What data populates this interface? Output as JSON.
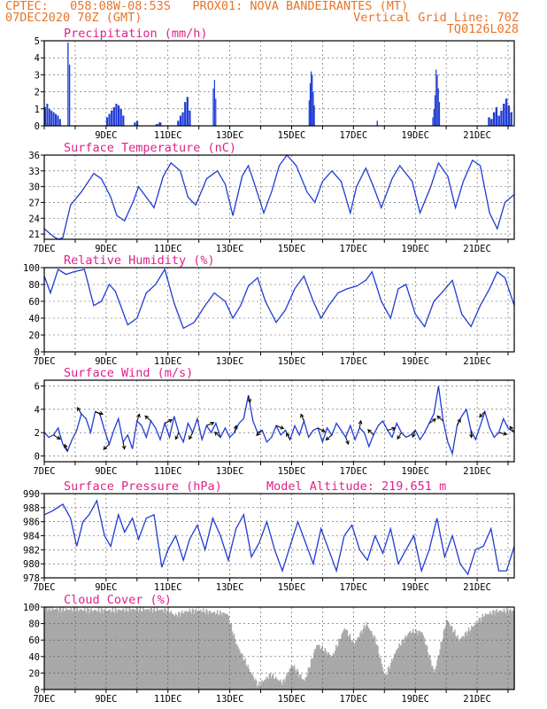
{
  "header": {
    "line1": "CPTEC:   058:08W-08:53S   PROX01: NOVA BANDEIRANTES (MT)",
    "line2_left": "07DEC2020 70Z (GMT)",
    "line2_right": "Vertical Grid Line: 70Z",
    "line3_right": "TQ0126L028"
  },
  "colors": {
    "header": "#e8742a",
    "title": "#e0218a",
    "series": "#1f3bd6",
    "cloud": "#a9a9a9",
    "wind_arrow": "#000000"
  },
  "x_axis": {
    "dates": [
      "7DEC",
      "9DEC",
      "11DEC",
      "13DEC",
      "15DEC",
      "17DEC",
      "19DEC",
      "21DEC"
    ],
    "dates_precip": [
      "9DEC",
      "11DEC",
      "13DEC",
      "15DEC",
      "17DEC",
      "19DEC",
      "21DEC"
    ],
    "start_day": 7,
    "end_day": 22.2
  },
  "panels": [
    {
      "id": "precip",
      "title": "Precipitation  (mm/h)",
      "ylim": [
        0,
        5
      ],
      "yticks": [
        0,
        1,
        2,
        3,
        4,
        5
      ]
    },
    {
      "id": "temp",
      "title": "Surface Temperature  (nC)",
      "ylim": [
        20,
        36
      ],
      "yticks": [
        21,
        24,
        27,
        30,
        33,
        36
      ]
    },
    {
      "id": "rh",
      "title": "Relative Humidity  (%)",
      "ylim": [
        0,
        100
      ],
      "yticks": [
        0,
        20,
        40,
        60,
        80,
        100
      ]
    },
    {
      "id": "wind",
      "title": "Surface Wind  (m/s)",
      "ylim": [
        -0.5,
        6.5
      ],
      "yticks": [
        0,
        2,
        4,
        6
      ]
    },
    {
      "id": "pres",
      "title": "Surface Pressure  (hPa)",
      "subtitle": "Model Altitude: 219.651  m",
      "ylim": [
        978,
        990
      ],
      "yticks": [
        978,
        980,
        982,
        984,
        986,
        988,
        990
      ]
    },
    {
      "id": "cloud",
      "title": "Cloud Cover  (%)",
      "ylim": [
        0,
        100
      ],
      "yticks": [
        0,
        20,
        40,
        60,
        80,
        100
      ]
    }
  ],
  "chart_data": [
    {
      "type": "bar",
      "title": "Precipitation  (mm/h)",
      "ylim": [
        0,
        5
      ],
      "events": [
        {
          "day": 7.0,
          "width": 0.55,
          "values": [
            1.1,
            1.3,
            1.0,
            0.9,
            0.8,
            0.7,
            0.6,
            0.4
          ]
        },
        {
          "day": 7.75,
          "width": 0.1,
          "values": [
            4.9,
            3.6
          ]
        },
        {
          "day": 9.0,
          "width": 0.6,
          "values": [
            0.5,
            0.7,
            0.9,
            1.1,
            1.3,
            1.2,
            1.0,
            0.6
          ]
        },
        {
          "day": 9.9,
          "width": 0.15,
          "values": [
            0.2,
            0.3
          ]
        },
        {
          "day": 10.6,
          "width": 0.2,
          "values": [
            0.1,
            0.2
          ]
        },
        {
          "day": 11.3,
          "width": 0.45,
          "values": [
            0.3,
            0.6,
            0.8,
            1.4,
            1.7,
            0.9
          ]
        },
        {
          "day": 12.45,
          "width": 0.12,
          "values": [
            2.2,
            2.7,
            1.6
          ]
        },
        {
          "day": 15.55,
          "width": 0.2,
          "values": [
            1.5,
            2.5,
            3.2,
            3.0,
            2.0,
            1.2
          ]
        },
        {
          "day": 17.75,
          "width": 0.05,
          "values": [
            0.3
          ]
        },
        {
          "day": 19.55,
          "width": 0.25,
          "values": [
            0.5,
            1.0,
            1.8,
            3.3,
            3.0,
            2.2,
            1.4
          ]
        },
        {
          "day": 21.35,
          "width": 0.8,
          "values": [
            0.5,
            0.4,
            0.8,
            1.1,
            0.6,
            0.9,
            1.3,
            1.6,
            1.2,
            0.8
          ]
        }
      ]
    },
    {
      "type": "line",
      "title": "Surface Temperature  (nC)",
      "ylim": [
        20,
        36
      ],
      "x": [
        7.0,
        7.3,
        7.45,
        7.6,
        7.85,
        8.2,
        8.6,
        8.85,
        9.15,
        9.35,
        9.6,
        9.9,
        10.05,
        10.3,
        10.55,
        10.85,
        11.1,
        11.4,
        11.65,
        11.9,
        12.25,
        12.6,
        12.85,
        13.1,
        13.4,
        13.6,
        13.8,
        14.1,
        14.35,
        14.6,
        14.85,
        15.15,
        15.5,
        15.75,
        16.0,
        16.3,
        16.6,
        16.9,
        17.1,
        17.4,
        17.65,
        17.9,
        18.25,
        18.5,
        18.9,
        19.15,
        19.5,
        19.75,
        20.05,
        20.3,
        20.55,
        20.85,
        21.1,
        21.4,
        21.65,
        21.9,
        22.2
      ],
      "y": [
        22,
        20.5,
        20,
        20.3,
        26.5,
        29,
        32.5,
        31.5,
        28,
        24.5,
        23.5,
        27.5,
        30,
        28,
        26,
        32,
        34.5,
        33,
        28,
        26.5,
        31.5,
        33,
        30.5,
        24.5,
        32,
        34,
        30.5,
        25,
        29,
        34,
        36,
        34,
        29,
        27,
        31,
        33,
        31,
        25,
        30,
        33.5,
        30,
        26,
        31.5,
        34,
        31,
        25,
        30,
        34.5,
        32,
        26,
        31,
        35,
        34,
        25,
        22,
        27,
        28.5
      ]
    },
    {
      "type": "line",
      "title": "Relative Humidity  (%)",
      "ylim": [
        0,
        100
      ],
      "x": [
        7.0,
        7.2,
        7.45,
        7.7,
        7.95,
        8.3,
        8.6,
        8.85,
        9.1,
        9.3,
        9.7,
        10.0,
        10.3,
        10.6,
        10.9,
        11.2,
        11.5,
        11.85,
        12.2,
        12.5,
        12.85,
        13.1,
        13.35,
        13.6,
        13.9,
        14.15,
        14.5,
        14.8,
        15.1,
        15.4,
        15.7,
        15.95,
        16.2,
        16.5,
        16.8,
        17.1,
        17.4,
        17.6,
        17.9,
        18.2,
        18.45,
        18.7,
        19.0,
        19.3,
        19.6,
        19.9,
        20.2,
        20.5,
        20.8,
        21.1,
        21.4,
        21.65,
        21.9,
        22.2
      ],
      "y": [
        90,
        70,
        98,
        92,
        95,
        98,
        55,
        60,
        80,
        72,
        32,
        40,
        70,
        80,
        98,
        58,
        28,
        35,
        55,
        70,
        60,
        40,
        55,
        78,
        88,
        60,
        35,
        50,
        75,
        90,
        60,
        40,
        55,
        70,
        75,
        78,
        85,
        95,
        60,
        40,
        75,
        80,
        45,
        30,
        60,
        72,
        85,
        45,
        30,
        55,
        75,
        95,
        88,
        55
      ]
    },
    {
      "type": "line",
      "title": "Surface Wind  (m/s)",
      "ylim": [
        -0.5,
        6.5
      ],
      "x": [
        7.0,
        7.15,
        7.3,
        7.45,
        7.6,
        7.75,
        7.9,
        8.05,
        8.2,
        8.35,
        8.5,
        8.65,
        8.8,
        8.95,
        9.1,
        9.25,
        9.4,
        9.55,
        9.7,
        9.85,
        10.0,
        10.15,
        10.3,
        10.45,
        10.6,
        10.75,
        10.9,
        11.05,
        11.2,
        11.35,
        11.5,
        11.65,
        11.8,
        11.95,
        12.1,
        12.25,
        12.4,
        12.55,
        12.7,
        12.85,
        13.0,
        13.15,
        13.3,
        13.45,
        13.6,
        13.75,
        13.9,
        14.05,
        14.2,
        14.35,
        14.5,
        14.65,
        14.8,
        14.95,
        15.1,
        15.25,
        15.4,
        15.55,
        15.7,
        15.85,
        16.0,
        16.15,
        16.3,
        16.45,
        16.6,
        16.75,
        16.9,
        17.05,
        17.2,
        17.35,
        17.5,
        17.65,
        17.8,
        17.95,
        18.1,
        18.25,
        18.4,
        18.55,
        18.7,
        18.85,
        19.0,
        19.15,
        19.3,
        19.45,
        19.6,
        19.75,
        19.9,
        20.05,
        20.2,
        20.35,
        20.5,
        20.65,
        20.8,
        20.95,
        21.1,
        21.25,
        21.4,
        21.55,
        21.7,
        21.85,
        22.0,
        22.2
      ],
      "y": [
        2.0,
        1.6,
        1.8,
        2.4,
        1.0,
        0.4,
        1.4,
        2.2,
        3.6,
        3.2,
        2.0,
        3.8,
        3.6,
        2.2,
        1.0,
        2.2,
        3.2,
        1.2,
        1.8,
        0.6,
        3.0,
        2.6,
        1.6,
        3.0,
        2.4,
        1.4,
        2.8,
        1.6,
        3.4,
        2.0,
        1.2,
        2.8,
        2.0,
        3.2,
        1.4,
        2.6,
        2.0,
        2.8,
        1.6,
        2.4,
        1.6,
        2.0,
        2.8,
        3.2,
        5.2,
        3.0,
        2.0,
        2.2,
        1.2,
        1.6,
        2.6,
        1.8,
        2.2,
        1.4,
        2.6,
        1.8,
        3.0,
        1.6,
        2.2,
        2.4,
        1.2,
        2.4,
        1.8,
        2.8,
        2.2,
        1.6,
        2.6,
        1.4,
        2.4,
        2.0,
        0.8,
        1.8,
        2.6,
        3.0,
        2.2,
        1.6,
        2.8,
        2.0,
        1.6,
        1.8,
        2.2,
        1.4,
        2.0,
        2.8,
        3.6,
        6.0,
        3.0,
        1.2,
        0.2,
        2.6,
        3.4,
        4.0,
        2.2,
        1.4,
        2.6,
        3.8,
        2.4,
        1.6,
        2.0,
        3.2,
        2.4,
        2.0
      ]
    },
    {
      "type": "line",
      "title": "Surface Pressure  (hPa)",
      "ylim": [
        978,
        990
      ],
      "x": [
        7.0,
        7.25,
        7.6,
        7.85,
        8.05,
        8.25,
        8.45,
        8.7,
        8.95,
        9.15,
        9.4,
        9.6,
        9.85,
        10.05,
        10.3,
        10.55,
        10.8,
        11.0,
        11.25,
        11.5,
        11.7,
        11.95,
        12.2,
        12.45,
        12.7,
        12.95,
        13.2,
        13.45,
        13.7,
        13.95,
        14.2,
        14.45,
        14.7,
        14.95,
        15.2,
        15.45,
        15.7,
        15.95,
        16.2,
        16.45,
        16.7,
        16.95,
        17.2,
        17.45,
        17.7,
        17.95,
        18.2,
        18.45,
        18.7,
        18.95,
        19.2,
        19.45,
        19.7,
        19.95,
        20.2,
        20.45,
        20.7,
        20.95,
        21.2,
        21.45,
        21.7,
        21.95,
        22.2
      ],
      "y": [
        987,
        987.5,
        988.5,
        986.5,
        982.5,
        986,
        987,
        989,
        984,
        982.5,
        987,
        984.5,
        986.5,
        983.5,
        986.5,
        987,
        979.5,
        982,
        984,
        980.5,
        983.5,
        985.5,
        982,
        986.5,
        984,
        980.5,
        985,
        987,
        981,
        983,
        986,
        982,
        979,
        982.5,
        986,
        983,
        980,
        985,
        982,
        979,
        984,
        985.5,
        982,
        980.5,
        984,
        981.5,
        985,
        980,
        982,
        984,
        979,
        982,
        986.5,
        981,
        984,
        980,
        978.5,
        982,
        982.5,
        985,
        979,
        979,
        982.5
      ]
    },
    {
      "type": "area",
      "title": "Cloud Cover  (%)",
      "ylim": [
        0,
        100
      ],
      "x": [
        7.0,
        7.6,
        8.0,
        8.6,
        9.2,
        9.8,
        10.5,
        11.0,
        11.2,
        11.6,
        12.0,
        12.5,
        12.9,
        13.2,
        13.6,
        13.9,
        14.3,
        14.7,
        15.0,
        15.4,
        15.8,
        16.3,
        16.7,
        17.0,
        17.4,
        17.7,
        18.0,
        18.4,
        18.8,
        19.2,
        19.6,
        20.0,
        20.4,
        20.8,
        21.2,
        21.6,
        22.2
      ],
      "y": [
        98,
        97,
        97,
        96,
        96,
        97,
        97,
        96,
        90,
        95,
        96,
        93,
        92,
        55,
        25,
        5,
        18,
        8,
        30,
        10,
        55,
        40,
        75,
        55,
        80,
        60,
        15,
        50,
        70,
        70,
        20,
        85,
        60,
        75,
        90,
        95,
        96
      ]
    }
  ]
}
